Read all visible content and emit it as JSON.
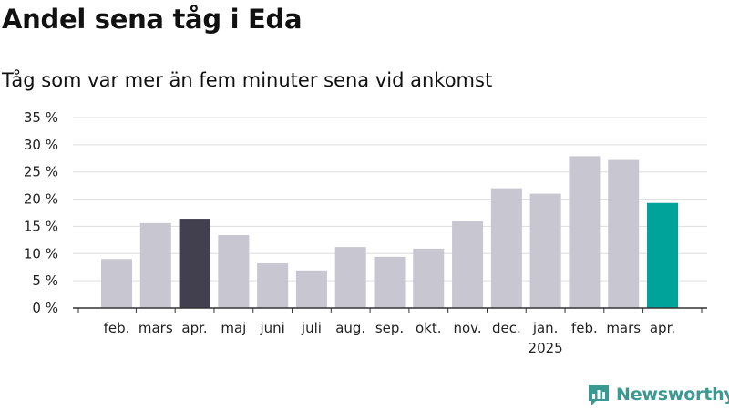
{
  "header": {
    "title": "Andel sena tåg i Eda",
    "subtitle": "Tåg som var mer än fem minuter sena vid ankomst"
  },
  "brand": {
    "name": "Newsworthy"
  },
  "colors": {
    "bar_default": "#c8c6d0",
    "bar_highlight_dark": "#42404f",
    "bar_highlight_teal": "#00a39a",
    "grid": "#dddddd",
    "axis": "#333333",
    "brand": "#3a9a92"
  },
  "chart_data": {
    "type": "bar",
    "categories": [
      "feb.",
      "mars",
      "apr.",
      "maj",
      "juni",
      "juli",
      "aug.",
      "sep.",
      "okt.",
      "nov.",
      "dec.",
      "jan.",
      "feb.",
      "mars",
      "apr."
    ],
    "year_labels": [
      {
        "index": 11,
        "label": "2025"
      }
    ],
    "values": [
      9.0,
      15.6,
      16.4,
      13.4,
      8.2,
      6.9,
      11.2,
      9.4,
      10.9,
      15.9,
      22.0,
      21.0,
      27.9,
      27.2,
      19.3
    ],
    "highlight": {
      "2": "dark",
      "14": "teal"
    },
    "ylim": [
      0,
      35
    ],
    "yticks": [
      0,
      5,
      10,
      15,
      20,
      25,
      30,
      35
    ],
    "ytick_labels": [
      "0 %",
      "5 %",
      "10 %",
      "15 %",
      "20 %",
      "25 %",
      "30 %",
      "35 %"
    ],
    "grid": true,
    "title": "Andel sena tåg i Eda",
    "xlabel": "",
    "ylabel": ""
  }
}
